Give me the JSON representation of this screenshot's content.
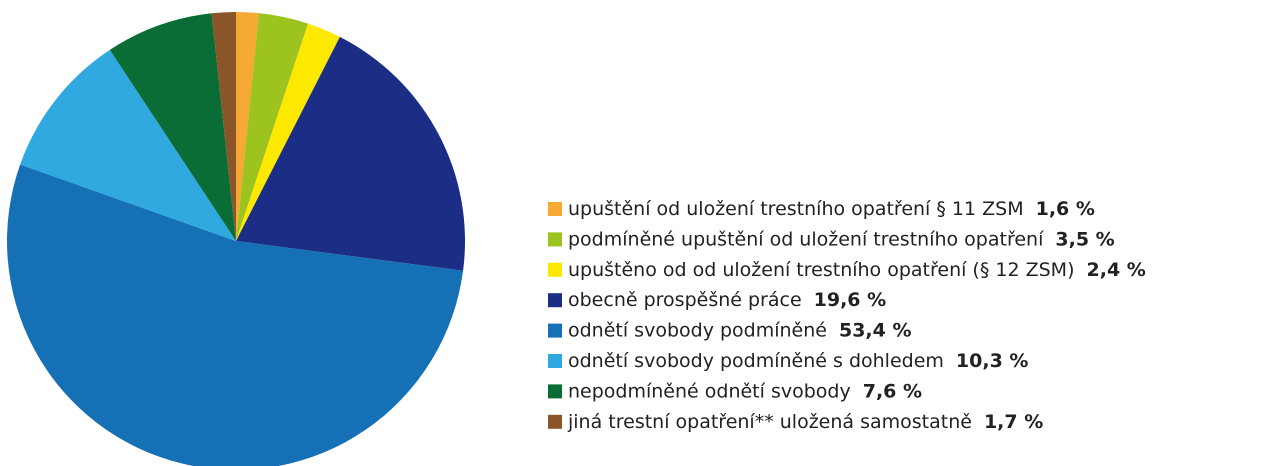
{
  "chart_data": {
    "type": "pie",
    "categories": [
      "upuštění od uložení trestního opatření § 11 ZSM",
      "podmíněné upuštění od uložení trestního opatření",
      "upuštěno od od uložení trestního opatření (§ 12 ZSM)",
      "obecně prospěšné práce",
      "odnětí svobody podmíněné",
      "odnětí svobody podmíněné s dohledem",
      "nepodmíněné odnětí svobody",
      "jiná trestní opatření** uložená samostatně"
    ],
    "values": [
      1.6,
      3.5,
      2.4,
      19.6,
      53.4,
      10.3,
      7.6,
      1.7
    ],
    "value_labels": [
      "1,6 %",
      "3,5 %",
      "2,4 %",
      "19,6 %",
      "53,4 %",
      "10,3 %",
      "7,6 %",
      "1,7 %"
    ],
    "colors": [
      "#f6a935",
      "#9dc31e",
      "#fde900",
      "#1b2d84",
      "#1570b6",
      "#2fa9df",
      "#0b6d36",
      "#8a5529"
    ],
    "legend": "right"
  }
}
